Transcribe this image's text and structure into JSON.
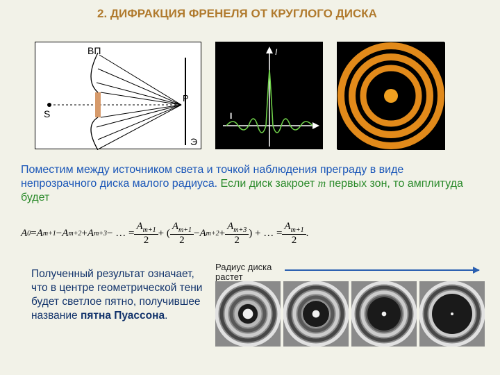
{
  "title": "2. ДИФРАКЦИЯ ФРЕНЕЛЯ ОТ КРУГЛОГО ДИСКА",
  "fig1": {
    "labels": {
      "top": "BП",
      "S": "S",
      "P": "P",
      "screen": "Э"
    },
    "disk_color": "#d69a6b",
    "line_color": "#000000"
  },
  "fig2": {
    "bg": "#000000",
    "line_color": "#6fcf4a",
    "axis_color": "#ffffff",
    "axis_labels": {
      "x": "I",
      "y": "I"
    }
  },
  "fig3": {
    "ring_colors": [
      "#e28a1a",
      "#e28a1a",
      "#e28a1a"
    ],
    "ring_radii": [
      18,
      38,
      54,
      68
    ],
    "ring_widths": [
      36,
      8,
      10,
      10
    ],
    "center_color": "#f0a020",
    "bg": "#000000"
  },
  "para1": {
    "blue": "Поместим между источником света и точкой наблюдения преграду в виде непрозрачного диска малого радиуса. ",
    "green_a": "Если диск закроет ",
    "m_var": "m",
    "green_b": " первых зон, то амплитуда будет"
  },
  "formula": {
    "A0": "A",
    "A0sub": "0",
    "eq": " = ",
    "t1": "A",
    "t1s": "m+1",
    "minus": " − ",
    "t2": "A",
    "t2s": "m+2",
    "plus": " + ",
    "t3": "A",
    "t3s": "m+3",
    "dots": " − … = ",
    "f1n": "A",
    "f1ns": "m+1",
    "f1d": "2",
    "lp": " + (",
    "rp": ") + … = ",
    "f2an": "A",
    "f2ans": "m+1",
    "f2d": "2",
    "f2bn": "A",
    "f2bns": "m+2",
    "f2cn": "A",
    "f2cns": "m+3",
    "end": "."
  },
  "para2": "Полученный результат означает, что в центре геометрической тени будет светлое пятно, получившее название <b>пятна Пуассона</b>.",
  "radlabel": "Радиус диска растет",
  "ringseries": {
    "count": 4,
    "bg": "#8a8a8a",
    "light": "#f0f0f0",
    "dark": "#303030",
    "center_radii": [
      22,
      16,
      10,
      6
    ]
  },
  "colors": {
    "page_bg": "#f2f2e8",
    "title": "#b07a2d",
    "blue_text": "#1a56b8",
    "green_text": "#2a8a2a",
    "dark_blue": "#12336b",
    "arrow": "#2a5fb0"
  }
}
